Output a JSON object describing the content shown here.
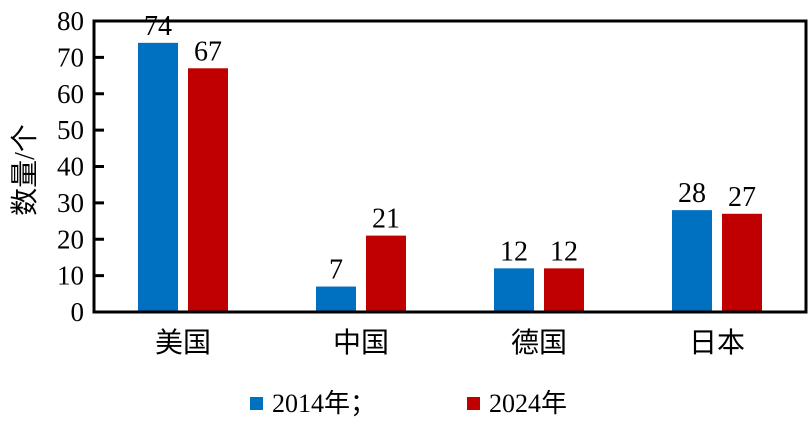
{
  "chart_data": {
    "type": "bar",
    "categories": [
      "美国",
      "中国",
      "德国",
      "日本"
    ],
    "series": [
      {
        "name": "2014年；",
        "color": "#0070C0",
        "values": [
          74,
          7,
          12,
          28
        ]
      },
      {
        "name": "2024年",
        "color": "#C00000",
        "values": [
          67,
          21,
          12,
          27
        ]
      }
    ],
    "ylabel": "数量/个",
    "xlabel": "",
    "ylim": [
      0,
      80
    ],
    "yticks": [
      0,
      10,
      20,
      30,
      40,
      50,
      60,
      70,
      80
    ],
    "grid": false,
    "legend_position": "bottom",
    "data_labels": true
  }
}
